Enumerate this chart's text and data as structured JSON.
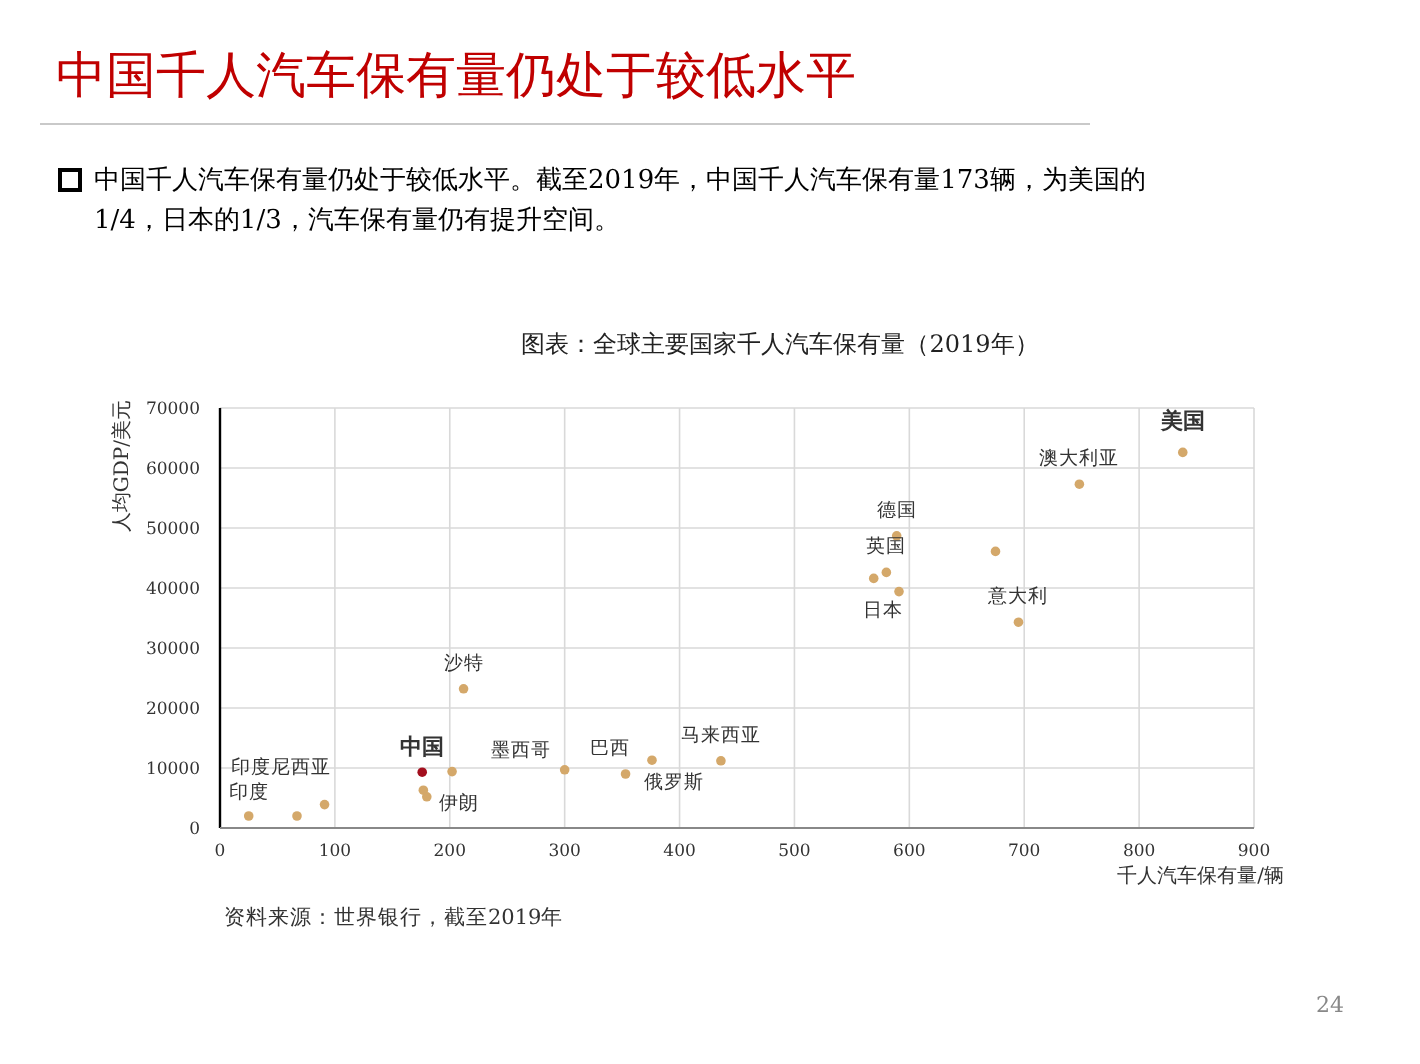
{
  "chart_data": {
    "type": "scatter",
    "title": "中国千人汽车保有量仍处于较低水平",
    "subtitle": "图表：全球主要国家千人汽车保有量（2019年）",
    "xlabel": "千人汽车保有量/辆",
    "ylabel": "人均GDP/美元",
    "x": [
      25,
      67,
      91,
      176,
      177,
      180,
      202,
      212,
      300,
      353,
      376,
      436,
      589,
      675,
      580,
      569,
      591,
      695,
      748,
      838
    ],
    "values": [
      2000,
      2000,
      3900,
      9300,
      6300,
      5200,
      9400,
      23200,
      9700,
      9000,
      11300,
      11200,
      48700,
      46100,
      42600,
      41600,
      39400,
      34300,
      57300,
      62600
    ],
    "colors": [
      "#d4a86a",
      "#d4a86a",
      "#d4a86a",
      "#a30f1e",
      "#d4a86a",
      "#d4a86a",
      "#d4a86a",
      "#d4a86a",
      "#d4a86a",
      "#d4a86a",
      "#d4a86a",
      "#d4a86a",
      "#d4a86a",
      "#d4a86a",
      "#d4a86a",
      "#d4a86a",
      "#d4a86a",
      "#d4a86a",
      "#d4a86a",
      "#d4a86a"
    ],
    "xlim": [
      0,
      900
    ],
    "xticks": [
      0,
      100,
      200,
      300,
      400,
      500,
      600,
      700,
      800,
      900
    ],
    "ylim": [
      0,
      70000
    ],
    "yticks": [
      0,
      10000,
      20000,
      30000,
      40000,
      50000,
      60000,
      70000
    ],
    "grid": true,
    "marker": "circle",
    "annotations": [
      "中国千人汽车保有量仍处于较低水平。截至2019年，中国千人汽车保有量173辆，为美国的1/4，日本的1/3，汽车保有量仍有提升空间。",
      "资料来源：世界银行，截至2019年",
      "24",
      {
        "text": "印度尼西亚",
        "x": 91,
        "y": 3900
      },
      {
        "text": "印度",
        "x": 25,
        "y": 2000
      },
      {
        "text": "中国",
        "x": 176,
        "y": 9300
      },
      {
        "text": "伊朗",
        "x": 180,
        "y": 5200
      },
      {
        "text": "沙特",
        "x": 212,
        "y": 23200
      },
      {
        "text": "墨西哥",
        "x": 300,
        "y": 9700
      },
      {
        "text": "巴西",
        "x": 353,
        "y": 9000
      },
      {
        "text": "俄罗斯",
        "x": 376,
        "y": 11300
      },
      {
        "text": "马来西亚",
        "x": 436,
        "y": 11200
      },
      {
        "text": "德国",
        "x": 589,
        "y": 48700
      },
      {
        "text": "英国",
        "x": 580,
        "y": 42600
      },
      {
        "text": "日本",
        "x": 591,
        "y": 39400
      },
      {
        "text": "意大利",
        "x": 695,
        "y": 34300
      },
      {
        "text": "澳大利亚",
        "x": 748,
        "y": 57300
      },
      {
        "text": "美国",
        "x": 838,
        "y": 62600
      }
    ]
  }
}
